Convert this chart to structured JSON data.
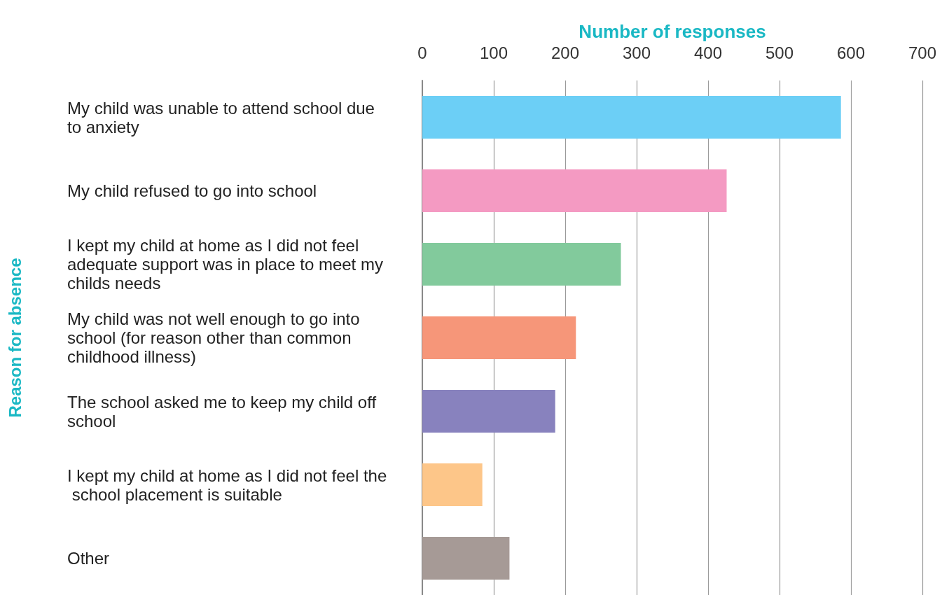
{
  "chart_data": {
    "type": "bar",
    "orientation": "horizontal",
    "xlabel": "Number of responses",
    "ylabel": "Reason for absence",
    "categories": [
      "My child was unable to attend school due to anxiety",
      "My child refused to go into school",
      "I kept my child at home as I did not feel adequate support was in place to meet my childs needs",
      "My child was not well enough to go into school (for reason other than common childhood illness)",
      "The school asked me to keep my child off school",
      "I kept my child at home as I did not feel the school placement is suitable",
      "Other"
    ],
    "values": [
      586,
      426,
      278,
      215,
      186,
      84,
      122
    ],
    "colors": [
      "#6ccff6",
      "#f49ac2",
      "#82ca9c",
      "#f69679",
      "#8882be",
      "#fdc689",
      "#a69a96"
    ],
    "xlim": [
      0,
      700
    ],
    "xticks": [
      0,
      100,
      200,
      300,
      400,
      500,
      600,
      700
    ],
    "grid": "x"
  }
}
